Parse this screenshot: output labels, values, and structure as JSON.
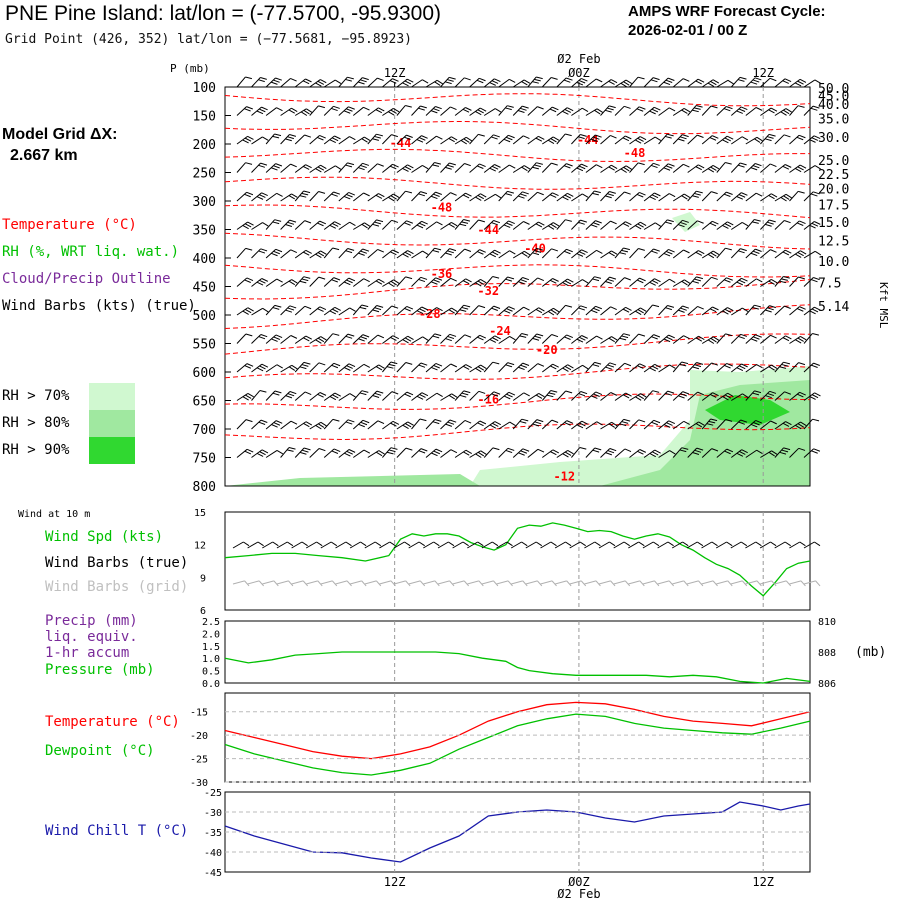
{
  "header": {
    "title": "PNE Pine Island:  lat/lon = (-77.5700, -95.9300)",
    "subtitle": "Grid Point (426, 352) lat/lon = (−77.5681, −95.8923)",
    "cycle_label": "AMPS WRF Forecast Cycle:",
    "cycle_value": "2026-02-01 / 00  Z",
    "grid_label": "Model Grid ΔX:",
    "grid_value": "2.667 km"
  },
  "legend": {
    "temperature": "Temperature (°C)",
    "rh": "RH (%, WRT liq. wat.)",
    "cloud": "Cloud/Precip Outline",
    "wind": "Wind Barbs (kts) (true)",
    "rh70": "RH > 70%",
    "rh80": "RH > 80%",
    "rh90": "RH > 90%"
  },
  "time_axis": {
    "top_date": "Ø2 Feb",
    "ticks": [
      "12Z",
      "Ø0Z",
      "12Z"
    ],
    "bottom_date": "Ø2 Feb"
  },
  "colors": {
    "temp": "#ff0000",
    "rh": "#00c000",
    "cloud": "#7a2a9a",
    "rh70": "#d0f8d0",
    "rh80": "#a0e8a0",
    "rh90": "#30d830",
    "windchill": "#1a1aaa",
    "gridbarb": "#b0b0b0"
  },
  "chart_data": [
    {
      "type": "line",
      "name": "sounding-cross-section",
      "ylabel": "P (mb)",
      "right_label": "Kft MSL",
      "pressure_levels": [
        100,
        150,
        200,
        250,
        300,
        350,
        400,
        450,
        500,
        550,
        600,
        650,
        700,
        750,
        800
      ],
      "height_kft": [
        "50.0",
        "45.0",
        "40.0",
        "35.0",
        "30.0",
        "25.0",
        "22.5",
        "20.0",
        "17.5",
        "15.0",
        "12.5",
        "10.0",
        "7.5",
        "5.14"
      ],
      "height_pressure": [
        102,
        115,
        130,
        155,
        188,
        228,
        253,
        278,
        306,
        337,
        369,
        405,
        443,
        484
      ],
      "isotherms": [
        {
          "label": "-12",
          "t": 0.58,
          "p": 790
        },
        {
          "label": "-16",
          "t": 0.45,
          "p": 655
        },
        {
          "label": "-20",
          "t": 0.55,
          "p": 568
        },
        {
          "label": "-24",
          "t": 0.47,
          "p": 535
        },
        {
          "label": "-28",
          "t": 0.35,
          "p": 505
        },
        {
          "label": "-32",
          "t": 0.45,
          "p": 465
        },
        {
          "label": "-36",
          "t": 0.37,
          "p": 435
        },
        {
          "label": "-40",
          "t": 0.53,
          "p": 390
        },
        {
          "label": "-44",
          "t": 0.45,
          "p": 358
        },
        {
          "label": "-48",
          "t": 0.37,
          "p": 318
        },
        {
          "label": "-44",
          "t": 0.3,
          "p": 205
        },
        {
          "label": "-44",
          "t": 0.62,
          "p": 200
        },
        {
          "label": "-48",
          "t": 0.7,
          "p": 223
        }
      ]
    },
    {
      "type": "line",
      "name": "wind-10m",
      "title": "Wind at 10 m",
      "series_labels": [
        "Wind Spd (kts)",
        "Wind Barbs (true)",
        "Wind Barbs (grid)"
      ],
      "y_ticks": [
        "15",
        "12",
        "9",
        "6"
      ],
      "ylim": [
        6,
        15
      ],
      "x": [
        0,
        0.04,
        0.08,
        0.12,
        0.16,
        0.2,
        0.24,
        0.28,
        0.3,
        0.32,
        0.34,
        0.36,
        0.38,
        0.4,
        0.42,
        0.44,
        0.46,
        0.48,
        0.5,
        0.52,
        0.54,
        0.56,
        0.58,
        0.6,
        0.62,
        0.64,
        0.66,
        0.68,
        0.7,
        0.72,
        0.74,
        0.76,
        0.78,
        0.8,
        0.82,
        0.84,
        0.86,
        0.88,
        0.9,
        0.92,
        0.94,
        0.96,
        0.98,
        1.0
      ],
      "values": [
        10.8,
        11.0,
        11.2,
        11.2,
        11.0,
        10.8,
        10.5,
        11.0,
        12.5,
        13.0,
        12.8,
        13.0,
        13.0,
        12.8,
        12.2,
        11.8,
        11.5,
        12.0,
        13.5,
        13.8,
        13.7,
        14.0,
        13.8,
        13.5,
        13.2,
        13.3,
        13.2,
        12.8,
        12.5,
        12.8,
        13.0,
        12.7,
        12.0,
        11.5,
        10.8,
        10.2,
        9.8,
        9.2,
        8.2,
        7.3,
        8.5,
        9.8,
        10.3,
        10.5
      ]
    },
    {
      "type": "line",
      "name": "precip-pressure",
      "series_labels": [
        "Precip (mm)",
        "liq. equiv.",
        "1-hr accum",
        "Pressure (mb)"
      ],
      "y_ticks_left": [
        "2.5",
        "2.0",
        "1.5",
        "1.0",
        "0.5",
        "0.0"
      ],
      "y_ticks_right": [
        "810",
        "808",
        "806"
      ],
      "right_unit": "(mb)",
      "ylim": [
        806,
        810
      ],
      "x": [
        0,
        0.04,
        0.08,
        0.12,
        0.16,
        0.2,
        0.24,
        0.28,
        0.32,
        0.36,
        0.4,
        0.44,
        0.48,
        0.5,
        0.52,
        0.56,
        0.6,
        0.64,
        0.68,
        0.72,
        0.76,
        0.8,
        0.84,
        0.88,
        0.92,
        0.96,
        1.0
      ],
      "values": [
        807.6,
        807.3,
        807.5,
        807.8,
        807.9,
        808.0,
        808.0,
        808.0,
        808.0,
        808.0,
        807.9,
        807.6,
        807.4,
        807.0,
        806.8,
        806.6,
        806.5,
        806.5,
        806.5,
        806.5,
        806.4,
        806.5,
        806.4,
        806.1,
        806.0,
        806.3,
        806.1
      ]
    },
    {
      "type": "line",
      "name": "temperature-dewpoint",
      "series_labels": [
        "Temperature (°C)",
        "Dewpoint (°C)"
      ],
      "y_ticks": [
        "-15",
        "-20",
        "-25",
        "-30"
      ],
      "ylim": [
        -30,
        -11
      ],
      "x": [
        0,
        0.05,
        0.1,
        0.15,
        0.2,
        0.25,
        0.3,
        0.35,
        0.4,
        0.45,
        0.5,
        0.55,
        0.6,
        0.65,
        0.7,
        0.75,
        0.8,
        0.85,
        0.9,
        0.95,
        1.0
      ],
      "series": [
        {
          "name": "Temperature",
          "values": [
            -19,
            -20.5,
            -22,
            -23.5,
            -24.5,
            -25,
            -24,
            -22.5,
            -20,
            -17,
            -15,
            -13.5,
            -13,
            -13.3,
            -14.5,
            -16,
            -17,
            -17.5,
            -18,
            -16.5,
            -15
          ]
        },
        {
          "name": "Dewpoint",
          "values": [
            -22,
            -24,
            -25.5,
            -27,
            -28,
            -28.5,
            -27.5,
            -26,
            -23,
            -20.5,
            -18,
            -16.5,
            -15.5,
            -16,
            -17.5,
            -18.5,
            -19,
            -19.5,
            -19.8,
            -18.5,
            -17
          ]
        }
      ]
    },
    {
      "type": "line",
      "name": "wind-chill",
      "series_labels": [
        "Wind Chill T (°C)"
      ],
      "y_ticks": [
        "-25",
        "-30",
        "-35",
        "-40",
        "-45"
      ],
      "ylim": [
        -45,
        -25
      ],
      "x": [
        0,
        0.05,
        0.1,
        0.15,
        0.2,
        0.25,
        0.3,
        0.35,
        0.4,
        0.45,
        0.5,
        0.55,
        0.6,
        0.65,
        0.7,
        0.75,
        0.8,
        0.85,
        0.88,
        0.92,
        0.95,
        0.98,
        1.0
      ],
      "values": [
        -33.5,
        -36,
        -38,
        -40,
        -40.2,
        -41.5,
        -42.5,
        -39,
        -36,
        -31,
        -30,
        -29.5,
        -30,
        -31.5,
        -32.5,
        -31,
        -30.5,
        -30,
        -27.5,
        -28.5,
        -29.5,
        -28.5,
        -28
      ]
    }
  ]
}
